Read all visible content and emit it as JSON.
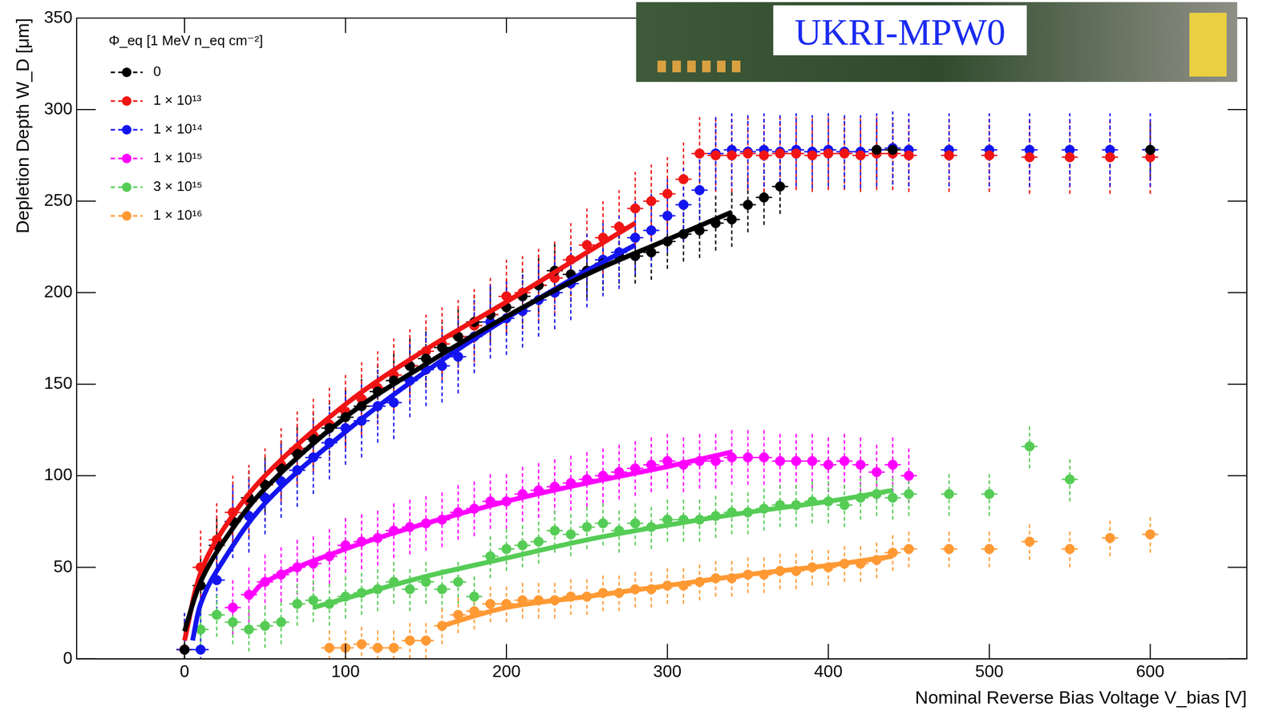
{
  "chart_data": {
    "type": "scatter",
    "x_label": "Nominal Reverse Bias Voltage V_bias [V]",
    "y_label": "Depletion Depth W_D [μm]",
    "legend_title": "Φ_eq [1 MeV n_eq cm⁻²]",
    "annotations": [
      "UKRI-MPW0"
    ],
    "xlim": [
      -67,
      660
    ],
    "xticks": [
      0,
      100,
      200,
      300,
      400,
      500,
      600
    ],
    "ylim": [
      0,
      350
    ],
    "yticks": [
      0,
      50,
      100,
      150,
      200,
      250,
      300,
      350
    ],
    "grid": false,
    "legend": "upper left",
    "marker": "circle",
    "line_style": "dashed",
    "series": [
      {
        "name": "0",
        "color": "#000000",
        "x_error": 5,
        "y_error": 15,
        "x": [
          0,
          10,
          20,
          30,
          40,
          50,
          60,
          70,
          80,
          90,
          100,
          110,
          120,
          130,
          140,
          150,
          160,
          170,
          180,
          190,
          200,
          210,
          220,
          230,
          240,
          250,
          260,
          270,
          280,
          290,
          300,
          310,
          320,
          330,
          340,
          350,
          360,
          370,
          430,
          440,
          600
        ],
        "values": [
          5,
          40,
          62,
          75,
          88,
          95,
          104,
          112,
          120,
          126,
          132,
          138,
          146,
          152,
          160,
          164,
          170,
          176,
          184,
          188,
          192,
          198,
          204,
          212,
          210,
          212,
          216,
          220,
          220,
          222,
          228,
          232,
          234,
          238,
          240,
          248,
          252,
          258,
          278,
          278,
          278
        ],
        "fit": {
          "x": [
            0,
            10,
            25,
            50,
            100,
            150,
            200,
            250,
            300,
            340
          ],
          "values": [
            15,
            42,
            65,
            93,
            132,
            161,
            187,
            210,
            229,
            244
          ]
        }
      },
      {
        "name": "1 × 10¹³",
        "color": "#f01414",
        "x_error": 5,
        "y_error": 20,
        "x": [
          0,
          10,
          20,
          30,
          40,
          50,
          60,
          70,
          80,
          90,
          100,
          110,
          120,
          130,
          140,
          150,
          160,
          170,
          180,
          190,
          200,
          210,
          220,
          230,
          240,
          250,
          260,
          270,
          280,
          290,
          300,
          310,
          320,
          330,
          340,
          350,
          360,
          370,
          380,
          390,
          400,
          410,
          420,
          430,
          440,
          450,
          475,
          500,
          525,
          550,
          575,
          600
        ],
        "values": [
          5,
          50,
          65,
          80,
          86,
          95,
          106,
          115,
          122,
          128,
          135,
          142,
          148,
          155,
          160,
          168,
          172,
          176,
          182,
          188,
          198,
          200,
          204,
          208,
          218,
          226,
          230,
          236,
          246,
          250,
          254,
          262,
          276,
          275,
          275,
          276,
          275,
          276,
          276,
          275,
          276,
          276,
          275,
          276,
          276,
          275,
          275,
          275,
          274,
          274,
          274,
          274
        ],
        "fit": {
          "x": [
            0,
            10,
            25,
            50,
            100,
            150,
            200,
            250,
            280
          ],
          "values": [
            10,
            47,
            72,
            100,
            139,
            169,
            195,
            222,
            238
          ]
        }
      },
      {
        "name": "1 × 10¹⁴",
        "color": "#1414f0",
        "x_error": 5,
        "y_error": 20,
        "x": [
          0,
          10,
          20,
          30,
          40,
          50,
          60,
          70,
          80,
          90,
          100,
          110,
          120,
          130,
          140,
          150,
          160,
          170,
          180,
          190,
          200,
          210,
          220,
          230,
          240,
          250,
          260,
          270,
          280,
          290,
          300,
          310,
          320,
          330,
          340,
          350,
          360,
          370,
          380,
          390,
          400,
          410,
          420,
          430,
          440,
          450,
          475,
          500,
          525,
          550,
          575,
          600
        ],
        "values": [
          5,
          5,
          43,
          75,
          78,
          88,
          97,
          103,
          110,
          118,
          126,
          130,
          138,
          140,
          152,
          158,
          160,
          165,
          176,
          184,
          186,
          190,
          196,
          200,
          205,
          212,
          218,
          222,
          230,
          234,
          242,
          248,
          256,
          276,
          278,
          277,
          278,
          277,
          278,
          277,
          278,
          277,
          277,
          278,
          279,
          278,
          278,
          278,
          278,
          278,
          278,
          278
        ],
        "fit": {
          "x": [
            5,
            10,
            20,
            50,
            100,
            150,
            200,
            250,
            280
          ],
          "values": [
            10,
            30,
            48,
            85,
            124,
            157,
            186,
            212,
            226
          ]
        }
      },
      {
        "name": "1 × 10¹⁵",
        "color": "#ff00ff",
        "x_error": 5,
        "y_error": 15,
        "x": [
          30,
          40,
          50,
          60,
          70,
          80,
          90,
          100,
          110,
          120,
          130,
          140,
          150,
          160,
          170,
          180,
          190,
          200,
          210,
          220,
          230,
          240,
          250,
          260,
          270,
          280,
          290,
          300,
          310,
          320,
          330,
          340,
          350,
          360,
          370,
          380,
          390,
          400,
          410,
          420,
          430,
          440,
          450
        ],
        "values": [
          28,
          35,
          42,
          46,
          50,
          52,
          56,
          62,
          64,
          66,
          70,
          72,
          74,
          76,
          80,
          82,
          86,
          86,
          90,
          92,
          94,
          96,
          98,
          100,
          102,
          104,
          106,
          108,
          106,
          108,
          108,
          110,
          110,
          110,
          108,
          108,
          108,
          106,
          108,
          106,
          102,
          106,
          100
        ],
        "fit": {
          "x": [
            40,
            50,
            100,
            150,
            200,
            250,
            300,
            340
          ],
          "values": [
            33,
            42,
            60,
            74,
            86,
            96,
            105,
            113
          ]
        }
      },
      {
        "name": "3 × 10¹⁵",
        "color": "#55cc55",
        "x_error": 5,
        "y_error": 12,
        "x": [
          10,
          20,
          30,
          40,
          50,
          60,
          70,
          80,
          90,
          100,
          110,
          120,
          130,
          140,
          150,
          160,
          170,
          180,
          190,
          200,
          210,
          220,
          230,
          240,
          250,
          260,
          270,
          280,
          290,
          300,
          310,
          320,
          330,
          340,
          350,
          360,
          370,
          380,
          390,
          400,
          410,
          420,
          430,
          440,
          450,
          475,
          500,
          525,
          550
        ],
        "values": [
          16,
          24,
          20,
          16,
          18,
          20,
          30,
          32,
          30,
          34,
          36,
          38,
          42,
          38,
          42,
          38,
          42,
          34,
          56,
          60,
          62,
          64,
          70,
          68,
          72,
          74,
          70,
          74,
          72,
          76,
          76,
          76,
          78,
          80,
          80,
          82,
          84,
          84,
          86,
          86,
          84,
          88,
          90,
          88,
          90,
          90,
          90,
          116,
          98
        ],
        "fit": {
          "x": [
            80,
            100,
            150,
            200,
            250,
            300,
            350,
            400,
            440
          ],
          "values": [
            28,
            33,
            45,
            55,
            65,
            73,
            80,
            86,
            92
          ]
        }
      },
      {
        "name": "1 × 10¹⁶",
        "color": "#ff9933",
        "x_error": 5,
        "y_error": 10,
        "x": [
          90,
          100,
          110,
          120,
          130,
          140,
          150,
          160,
          170,
          180,
          190,
          200,
          210,
          220,
          230,
          240,
          250,
          260,
          270,
          280,
          290,
          300,
          310,
          320,
          330,
          340,
          350,
          360,
          370,
          380,
          390,
          400,
          410,
          420,
          430,
          440,
          450,
          475,
          500,
          525,
          550,
          575,
          600
        ],
        "values": [
          6,
          6,
          8,
          6,
          6,
          10,
          10,
          18,
          24,
          26,
          30,
          30,
          32,
          32,
          32,
          34,
          34,
          36,
          36,
          38,
          38,
          40,
          40,
          42,
          44,
          44,
          46,
          46,
          48,
          48,
          50,
          50,
          52,
          52,
          54,
          58,
          60,
          60,
          60,
          64,
          60,
          66,
          68
        ],
        "fit": {
          "x": [
            160,
            200,
            250,
            300,
            350,
            400,
            440
          ],
          "values": [
            18,
            28,
            34,
            40,
            46,
            51,
            56
          ]
        }
      }
    ]
  }
}
